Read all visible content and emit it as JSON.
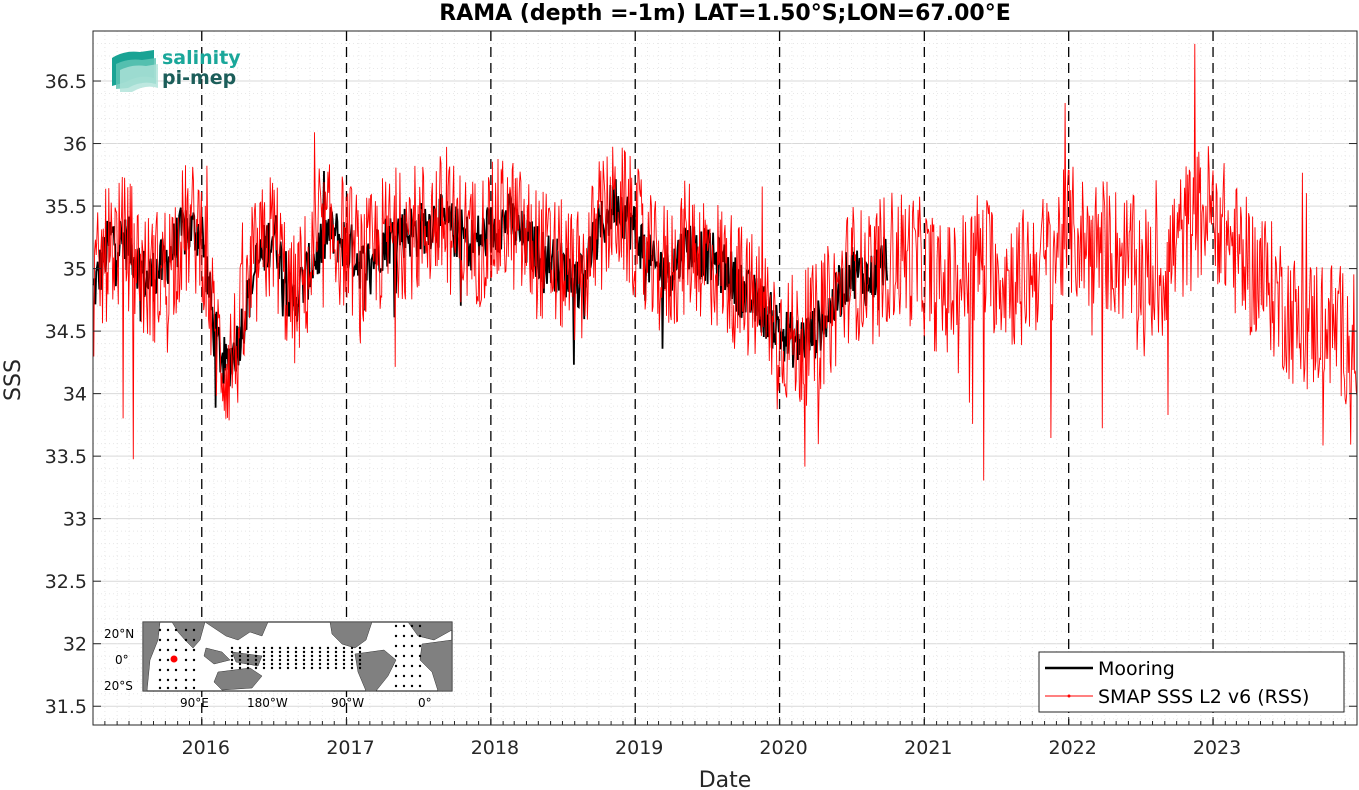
{
  "chart_data": {
    "type": "line",
    "title": "RAMA (depth =-1m) LAT=1.50°S;LON=67.00°E",
    "xlabel": "Date",
    "ylabel": "SSS",
    "xlim": [
      "2015-04-01",
      "2023-12-31"
    ],
    "ylim": [
      31.35,
      36.9
    ],
    "xticks": [
      "2016",
      "2017",
      "2018",
      "2019",
      "2020",
      "2021",
      "2022",
      "2023"
    ],
    "yticks": [
      "31.5",
      "32",
      "32.5",
      "33",
      "33.5",
      "34",
      "34.5",
      "35",
      "35.5",
      "36",
      "36.5"
    ],
    "year_boundaries": [
      "2016-01-01",
      "2017-01-01",
      "2018-01-01",
      "2019-01-01",
      "2020-01-01",
      "2021-01-01",
      "2022-01-01",
      "2023-01-01"
    ],
    "grid": true,
    "legend_position": "bottom-right",
    "series": [
      {
        "name": "Mooring",
        "color": "#000000",
        "x": [
          "2015-04-01",
          "2015-05-15",
          "2015-07-01",
          "2015-08-15",
          "2015-10-01",
          "2015-11-15",
          "2016-01-01",
          "2016-02-01",
          "2016-03-01",
          "2016-04-01",
          "2016-05-15",
          "2016-07-01",
          "2016-08-15",
          "2016-10-01",
          "2016-11-15",
          "2017-01-01",
          "2017-02-15",
          "2017-04-01",
          "2017-05-15",
          "2017-07-01",
          "2017-08-15",
          "2017-10-01",
          "2017-11-15",
          "2018-01-01",
          "2018-02-15",
          "2018-04-01",
          "2018-05-15",
          "2018-07-01",
          "2018-08-15",
          "2018-10-01",
          "2018-11-15",
          "2019-01-01",
          "2019-02-15",
          "2019-04-01",
          "2019-05-15",
          "2019-07-01",
          "2019-08-15",
          "2019-10-01",
          "2019-11-15",
          "2020-01-01",
          "2020-02-15",
          "2020-04-01",
          "2020-05-15",
          "2020-07-01",
          "2020-08-15",
          "2020-09-30"
        ],
        "values": [
          34.8,
          35.25,
          35.2,
          34.9,
          35.05,
          35.3,
          35.3,
          34.5,
          34.2,
          34.4,
          35.0,
          35.3,
          34.7,
          35.0,
          35.3,
          35.2,
          35.0,
          35.2,
          35.3,
          35.3,
          35.4,
          35.3,
          35.2,
          35.3,
          35.4,
          35.2,
          35.1,
          35.0,
          34.9,
          35.3,
          35.55,
          35.3,
          35.0,
          35.0,
          35.2,
          35.1,
          35.0,
          34.8,
          34.7,
          34.5,
          34.4,
          34.5,
          34.7,
          35.0,
          34.9,
          35.1
        ]
      },
      {
        "name": "SMAP SSS L2 v6 (RSS)",
        "color": "#ff0000",
        "marker": ".",
        "x": [
          "2015-04-01",
          "2015-05-15",
          "2015-07-01",
          "2015-08-15",
          "2015-10-01",
          "2015-11-15",
          "2016-01-01",
          "2016-02-01",
          "2016-03-01",
          "2016-04-01",
          "2016-05-15",
          "2016-07-01",
          "2016-08-15",
          "2016-10-01",
          "2016-11-15",
          "2017-01-01",
          "2017-02-15",
          "2017-04-01",
          "2017-05-15",
          "2017-07-01",
          "2017-08-15",
          "2017-10-01",
          "2017-11-15",
          "2018-01-01",
          "2018-02-15",
          "2018-04-01",
          "2018-05-15",
          "2018-07-01",
          "2018-08-15",
          "2018-10-01",
          "2018-11-15",
          "2019-01-01",
          "2019-02-15",
          "2019-04-01",
          "2019-05-15",
          "2019-07-01",
          "2019-08-15",
          "2019-10-01",
          "2019-11-15",
          "2020-01-01",
          "2020-02-15",
          "2020-04-01",
          "2020-05-15",
          "2020-07-01",
          "2020-08-15",
          "2020-10-01",
          "2020-11-15",
          "2021-01-01",
          "2021-02-15",
          "2021-04-01",
          "2021-05-15",
          "2021-07-01",
          "2021-08-15",
          "2021-10-01",
          "2021-11-15",
          "2022-01-01",
          "2022-02-15",
          "2022-04-01",
          "2022-05-15",
          "2022-07-01",
          "2022-08-15",
          "2022-10-01",
          "2022-11-15",
          "2023-01-01",
          "2023-02-15",
          "2023-04-01",
          "2023-05-15",
          "2023-07-01",
          "2023-08-15",
          "2023-10-01",
          "2023-11-15",
          "2023-12-31"
        ],
        "values": [
          34.8,
          35.2,
          35.2,
          34.9,
          35.0,
          35.3,
          35.3,
          34.5,
          34.2,
          34.4,
          35.0,
          35.3,
          34.7,
          35.0,
          35.3,
          35.2,
          35.0,
          35.2,
          35.3,
          35.3,
          35.4,
          35.3,
          35.2,
          35.3,
          35.4,
          35.2,
          35.1,
          35.0,
          34.9,
          35.3,
          35.5,
          35.3,
          35.0,
          35.0,
          35.2,
          35.1,
          35.0,
          34.8,
          34.7,
          34.5,
          34.4,
          34.5,
          34.7,
          35.0,
          34.9,
          35.1,
          35.1,
          35.0,
          34.8,
          34.9,
          35.1,
          35.0,
          34.9,
          35.0,
          35.1,
          35.3,
          35.2,
          35.2,
          35.1,
          35.0,
          34.9,
          35.2,
          35.4,
          35.5,
          35.2,
          35.0,
          34.9,
          34.7,
          34.5,
          34.6,
          34.5,
          34.4
        ]
      }
    ]
  },
  "logo": {
    "line1": "salinity",
    "line2": "pi-mep",
    "color1": "#1aa79a",
    "color2": "#1c5e5a"
  },
  "inset_map": {
    "lat_labels": [
      "20°N",
      "0°",
      "20°S"
    ],
    "lon_labels": [
      "90°E",
      "180°W",
      "90°W",
      "0°"
    ],
    "mooring_marker_color": "#ff0000"
  }
}
